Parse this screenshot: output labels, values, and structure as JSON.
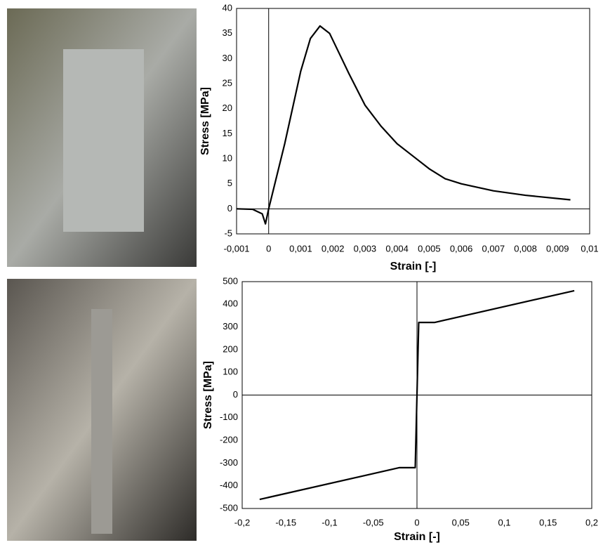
{
  "chart_data": [
    {
      "type": "line",
      "x_label": "Strain [-]",
      "y_label": "Stress [MPa]",
      "color": "#000000",
      "x": [
        -0.001,
        -0.0005,
        -0.0002,
        -0.0001,
        0,
        0.0005,
        0.001,
        0.0013,
        0.0016,
        0.0019,
        0.0022,
        0.0025,
        0.003,
        0.0035,
        0.004,
        0.0045,
        0.005,
        0.0055,
        0.006,
        0.007,
        0.008,
        0.0094
      ],
      "values": [
        0,
        -0.1,
        -1,
        -3,
        0,
        13,
        27.5,
        34,
        36.5,
        35,
        31,
        27,
        20.7,
        16.5,
        13,
        10.5,
        8,
        6,
        5,
        3.6,
        2.7,
        1.8
      ],
      "xlim": [
        -0.001,
        0.01
      ],
      "ylim": [
        -5,
        40
      ],
      "xticks": [
        {
          "value": -0.001,
          "label": "-0,001"
        },
        0,
        {
          "value": 0.001,
          "label": "0,001"
        },
        {
          "value": 0.002,
          "label": "0,002"
        },
        {
          "value": 0.003,
          "label": "0,003"
        },
        {
          "value": 0.004,
          "label": "0,004"
        },
        {
          "value": 0.005,
          "label": "0,005"
        },
        {
          "value": 0.006,
          "label": "0,006"
        },
        {
          "value": 0.007,
          "label": "0,007"
        },
        {
          "value": 0.008,
          "label": "0,008"
        },
        {
          "value": 0.009,
          "label": "0,009"
        },
        {
          "value": 0.01,
          "label": "0,01"
        }
      ],
      "yticks": [
        -5,
        0,
        5,
        10,
        15,
        20,
        25,
        30,
        35,
        40
      ],
      "grid": false
    },
    {
      "type": "line",
      "x_label": "Strain [-]",
      "y_label": "Stress [MPa]",
      "color": "#000000",
      "x": [
        -0.18,
        -0.02,
        -0.002,
        0.002,
        0.02,
        0.18
      ],
      "values": [
        -460,
        -320,
        -320,
        320,
        320,
        460
      ],
      "xlim": [
        -0.2,
        0.2
      ],
      "ylim": [
        -500,
        500
      ],
      "xticks": [
        {
          "value": -0.2,
          "label": "-0,2"
        },
        {
          "value": -0.15,
          "label": "-0,15"
        },
        {
          "value": -0.1,
          "label": "-0,1"
        },
        {
          "value": -0.05,
          "label": "-0,05"
        },
        0,
        {
          "value": 0.05,
          "label": "0,05"
        },
        {
          "value": 0.1,
          "label": "0,1"
        },
        {
          "value": 0.15,
          "label": "0,15"
        },
        {
          "value": 0.2,
          "label": "0,2"
        }
      ],
      "yticks": [
        -500,
        -400,
        -300,
        -200,
        -100,
        0,
        100,
        200,
        300,
        400,
        500
      ],
      "grid": false
    }
  ]
}
